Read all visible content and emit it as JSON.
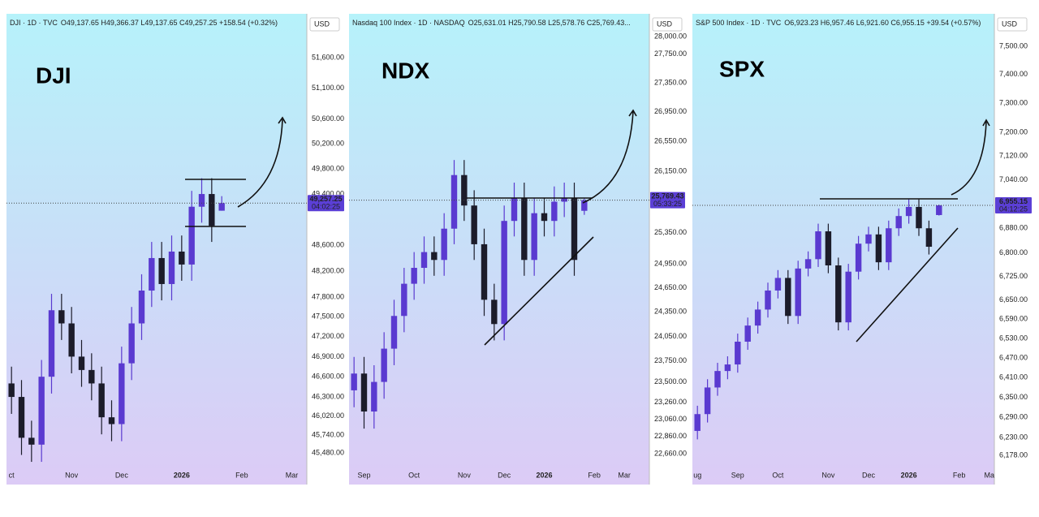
{
  "chart_data": [
    {
      "type": "candlestick",
      "title": "DJI",
      "subtitle": "DJI · 1D · TVC",
      "ohlc_text": "O49,137.65 H49,366.37 L49,137.65 C49,257.25 +158.54 (+0.32%)",
      "currency": "USD",
      "last_price_label": "49,257.25",
      "countdown": "04:02:25",
      "log_scale": true,
      "up_color": "#5a3ad0",
      "down_color": "#1c1c2a",
      "categories": [
        "ct",
        null,
        null,
        null,
        null,
        null,
        "Nov",
        null,
        null,
        null,
        null,
        "Dec",
        null,
        null,
        null,
        null,
        null,
        "2026",
        null,
        null,
        null,
        null,
        null,
        "Feb",
        null,
        null,
        null,
        null,
        "Mar",
        null
      ],
      "open": [
        46500,
        46300,
        45700,
        45600,
        46600,
        47600,
        47400,
        46900,
        46700,
        46500,
        46000,
        45900,
        46800,
        47400,
        47900,
        48400,
        48000,
        48500,
        48300,
        49200,
        49400,
        49137.65,
        null,
        null,
        null,
        null,
        null,
        null,
        null,
        null
      ],
      "high": [
        46750,
        46550,
        45950,
        46850,
        47850,
        47850,
        47650,
        47150,
        46950,
        46750,
        46250,
        47050,
        47650,
        48150,
        48650,
        48650,
        48750,
        48750,
        49450,
        49650,
        49650,
        49366.37,
        null,
        null,
        null,
        null,
        null,
        null,
        null,
        null
      ],
      "low": [
        46050,
        45450,
        45350,
        45350,
        46350,
        47150,
        46650,
        46450,
        46250,
        45750,
        45650,
        45650,
        46550,
        47150,
        47650,
        47750,
        47750,
        48050,
        48050,
        48950,
        48650,
        49137.65,
        null,
        null,
        null,
        null,
        null,
        null,
        null,
        null
      ],
      "close": [
        46300,
        45700,
        45600,
        46600,
        47600,
        47400,
        46900,
        46700,
        46500,
        46000,
        45900,
        46800,
        47400,
        47900,
        48400,
        48000,
        48500,
        48300,
        49200,
        49400,
        48900,
        49257.25,
        null,
        null,
        null,
        null,
        null,
        null,
        null,
        null
      ],
      "ylim": [
        45280,
        52327
      ],
      "yticks": [
        {
          "value": 51600,
          "label": "51,600.00"
        },
        {
          "value": 51100,
          "label": "51,100.00"
        },
        {
          "value": 50600,
          "label": "50,600.00"
        },
        {
          "value": 50200,
          "label": "50,200.00"
        },
        {
          "value": 49800,
          "label": "49,800.00"
        },
        {
          "value": 49400,
          "label": "49,400.00"
        },
        {
          "value": 48600,
          "label": "48,600.00"
        },
        {
          "value": 48200,
          "label": "48,200.00"
        },
        {
          "value": 47800,
          "label": "47,800.00"
        },
        {
          "value": 47500,
          "label": "47,500.00"
        },
        {
          "value": 47200,
          "label": "47,200.00"
        },
        {
          "value": 46900,
          "label": "46,900.00"
        },
        {
          "value": 46600,
          "label": "46,600.00"
        },
        {
          "value": 46300,
          "label": "46,300.00"
        },
        {
          "value": 46020,
          "label": "46,020.00"
        },
        {
          "value": 45740,
          "label": "45,740.00"
        },
        {
          "value": 45480,
          "label": "45,480.00"
        }
      ]
    },
    {
      "type": "candlestick",
      "title": "NDX",
      "subtitle": "Nasdaq 100 Index · 1D · NASDAQ",
      "ohlc_text": "O25,631.01 H25,790.58 L25,578.76 C25,769.43...",
      "currency": "USD",
      "last_price_label": "25,769.43",
      "countdown": "05:33:25",
      "log_scale": true,
      "up_color": "#5a3ad0",
      "down_color": "#1c1c2a",
      "categories": [
        null,
        "Sep",
        null,
        null,
        null,
        null,
        "Oct",
        null,
        null,
        null,
        null,
        "Nov",
        null,
        null,
        null,
        "Dec",
        null,
        null,
        null,
        "2026",
        null,
        null,
        null,
        null,
        "Feb",
        null,
        null,
        "Mar",
        null,
        null
      ],
      "open": [
        23400,
        23600,
        23150,
        23500,
        23900,
        24300,
        24700,
        24900,
        25100,
        25000,
        25400,
        26100,
        25700,
        25200,
        24500,
        24200,
        25500,
        25800,
        25000,
        25600,
        25500,
        25750,
        25800,
        25631.01,
        null,
        null,
        null,
        null,
        null,
        null
      ],
      "high": [
        23800,
        23800,
        23700,
        24100,
        24500,
        24900,
        25100,
        25300,
        25300,
        25600,
        26300,
        26300,
        25900,
        25400,
        24700,
        25700,
        26000,
        26000,
        25800,
        25800,
        25950,
        26000,
        26000,
        25790.58,
        null,
        null,
        null,
        null,
        null,
        null
      ],
      "low": [
        23200,
        22950,
        22950,
        23300,
        23700,
        24100,
        24500,
        24700,
        24800,
        24800,
        25200,
        25500,
        25000,
        24300,
        24000,
        24000,
        25300,
        24800,
        24800,
        25300,
        25300,
        25550,
        24800,
        25578.76,
        null,
        null,
        null,
        null,
        null,
        null
      ],
      "close": [
        23600,
        23150,
        23500,
        23900,
        24300,
        24700,
        24900,
        25100,
        25000,
        25400,
        26100,
        25700,
        25200,
        24500,
        24200,
        25500,
        25800,
        25000,
        25600,
        25500,
        25750,
        25800,
        25000,
        25769.43,
        null,
        null,
        null,
        null,
        null,
        null
      ],
      "ylim": [
        22511,
        28325
      ],
      "yticks": [
        {
          "value": 28000,
          "label": "28,000.00"
        },
        {
          "value": 27750,
          "label": "27,750.00"
        },
        {
          "value": 27350,
          "label": "27,350.00"
        },
        {
          "value": 26950,
          "label": "26,950.00"
        },
        {
          "value": 26550,
          "label": "26,550.00"
        },
        {
          "value": 26150,
          "label": "26,150.00"
        },
        {
          "value": 25350,
          "label": "25,350.00"
        },
        {
          "value": 24950,
          "label": "24,950.00"
        },
        {
          "value": 24650,
          "label": "24,650.00"
        },
        {
          "value": 24350,
          "label": "24,350.00"
        },
        {
          "value": 24050,
          "label": "24,050.00"
        },
        {
          "value": 23750,
          "label": "23,750.00"
        },
        {
          "value": 23500,
          "label": "23,500.00"
        },
        {
          "value": 23260,
          "label": "23,260.00"
        },
        {
          "value": 23060,
          "label": "23,060.00"
        },
        {
          "value": 22860,
          "label": "22,860.00"
        },
        {
          "value": 22660,
          "label": "22,660.00"
        }
      ]
    },
    {
      "type": "candlestick",
      "title": "SPX",
      "subtitle": "S&P 500 Index · 1D · TVC",
      "ohlc_text": "O6,923.23 H6,957.46 L6,921.60 C6,955.15 +39.54 (+0.57%)",
      "currency": "USD",
      "last_price_label": "6,955.15",
      "countdown": "04:12:25",
      "log_scale": true,
      "up_color": "#5a3ad0",
      "down_color": "#1c1c2a",
      "categories": [
        "ug",
        null,
        null,
        null,
        "Sep",
        null,
        null,
        null,
        "Oct",
        null,
        null,
        null,
        null,
        "Nov",
        null,
        null,
        null,
        "Dec",
        null,
        null,
        null,
        "2026",
        null,
        null,
        null,
        null,
        "Feb",
        null,
        null,
        "Ma"
      ],
      "open": [
        6250,
        6300,
        6380,
        6430,
        6450,
        6520,
        6570,
        6620,
        6680,
        6720,
        6600,
        6750,
        6780,
        6870,
        6760,
        6580,
        6740,
        6830,
        6860,
        6770,
        6880,
        6920,
        6950,
        6880,
        6923.23,
        null,
        null,
        null,
        null,
        null
      ],
      "high": [
        6325,
        6405,
        6455,
        6475,
        6545,
        6595,
        6645,
        6705,
        6745,
        6745,
        6775,
        6805,
        6895,
        6895,
        6785,
        6765,
        6855,
        6885,
        6885,
        6905,
        6945,
        6975,
        6975,
        6905,
        6957.46,
        null,
        null,
        null,
        null,
        null
      ],
      "low": [
        6225,
        6275,
        6355,
        6405,
        6425,
        6495,
        6545,
        6595,
        6655,
        6575,
        6575,
        6725,
        6755,
        6735,
        6555,
        6555,
        6715,
        6805,
        6745,
        6745,
        6855,
        6895,
        6855,
        6795,
        6921.6,
        null,
        null,
        null,
        null,
        null
      ],
      "close": [
        6300,
        6380,
        6430,
        6450,
        6520,
        6570,
        6620,
        6680,
        6720,
        6600,
        6750,
        6780,
        6870,
        6760,
        6580,
        6740,
        6830,
        6860,
        6770,
        6880,
        6920,
        6950,
        6880,
        6820,
        6955.15,
        null,
        null,
        null,
        null,
        null
      ],
      "ylim": [
        6145,
        7616
      ],
      "yticks": [
        {
          "value": 7500,
          "label": "7,500.00"
        },
        {
          "value": 7400,
          "label": "7,400.00"
        },
        {
          "value": 7300,
          "label": "7,300.00"
        },
        {
          "value": 7200,
          "label": "7,200.00"
        },
        {
          "value": 7120,
          "label": "7,120.00"
        },
        {
          "value": 7040,
          "label": "7,040.00"
        },
        {
          "value": 6880,
          "label": "6,880.00"
        },
        {
          "value": 6800,
          "label": "6,800.00"
        },
        {
          "value": 6725,
          "label": "6,725.00"
        },
        {
          "value": 6650,
          "label": "6,650.00"
        },
        {
          "value": 6590,
          "label": "6,590.00"
        },
        {
          "value": 6530,
          "label": "6,530.00"
        },
        {
          "value": 6470,
          "label": "6,470.00"
        },
        {
          "value": 6410,
          "label": "6,410.00"
        },
        {
          "value": 6350,
          "label": "6,350.00"
        },
        {
          "value": 6290,
          "label": "6,290.00"
        },
        {
          "value": 6230,
          "label": "6,230.00"
        },
        {
          "value": 6178,
          "label": "6,178.00"
        }
      ]
    }
  ]
}
